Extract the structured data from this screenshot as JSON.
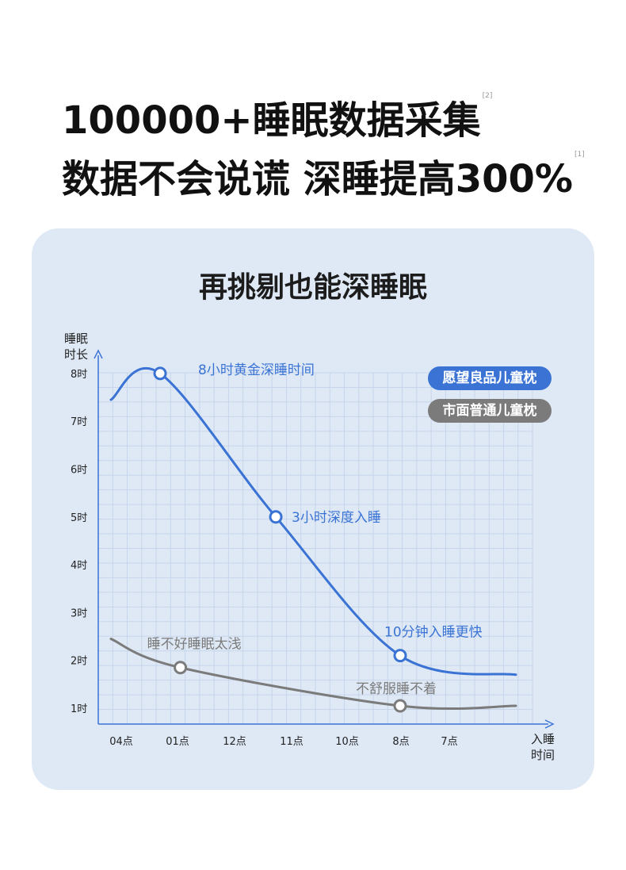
{
  "headline": {
    "line1": "100000+睡眠数据采集",
    "line1_note": "[2]",
    "line2": "数据不会说谎  深睡提高300%",
    "line2_note": "[1]"
  },
  "card_title": "再挑剔也能深睡眠",
  "colors": {
    "card_bg": "#dfe9f6",
    "grid": "#c6d5eb",
    "axis": "#3a73d4",
    "blue_series": "#3a73d4",
    "gray_series": "#7b7b7b"
  },
  "chart_data": {
    "type": "line",
    "ylabel_lines": [
      "睡眠",
      "时长"
    ],
    "xlabel_lines": [
      "入睡",
      "时间"
    ],
    "y_ticks": [
      "8时",
      "7时",
      "6时",
      "5时",
      "4时",
      "3时",
      "2时",
      "1时"
    ],
    "x_ticks": [
      "04点",
      "01点",
      "12点",
      "11点",
      "10点",
      "8点",
      "7点"
    ],
    "ylim": [
      1,
      8
    ],
    "grid": true,
    "legend_position": "top-right",
    "legend": [
      "愿望良品儿童枕",
      "市面普通儿童枕"
    ],
    "series": [
      {
        "name": "愿望良品儿童枕",
        "color": "#3a73d4",
        "points": [
          [
            0,
            7.45
          ],
          [
            0.85,
            8.0
          ],
          [
            2.85,
            5.0
          ],
          [
            5.0,
            2.1
          ],
          [
            7.0,
            1.7
          ]
        ],
        "markers": [
          {
            "x": 0.85,
            "y": 8.0,
            "label": "8小时黄金深睡时间"
          },
          {
            "x": 2.85,
            "y": 5.0,
            "label": "3小时深度入睡"
          },
          {
            "x": 5.0,
            "y": 2.1,
            "label": "10分钟入睡更快"
          }
        ]
      },
      {
        "name": "市面普通儿童枕",
        "color": "#7b7b7b",
        "points": [
          [
            0,
            2.45
          ],
          [
            1.2,
            1.85
          ],
          [
            5.0,
            1.05
          ],
          [
            7.0,
            1.05
          ]
        ],
        "markers": [
          {
            "x": 1.2,
            "y": 1.85,
            "label": "睡不好睡眠太浅"
          },
          {
            "x": 5.0,
            "y": 1.05,
            "label": "不舒服睡不着"
          }
        ]
      }
    ]
  }
}
